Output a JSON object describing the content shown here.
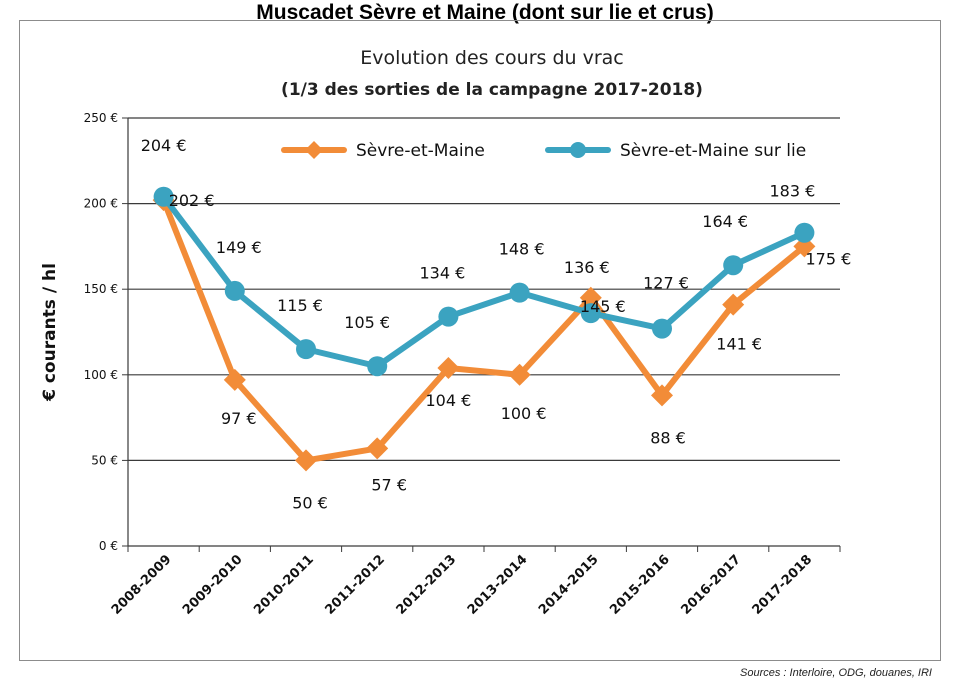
{
  "page_title": "Muscadet Sèvre et Maine (dont sur lie et crus)",
  "source_note": "Sources : Interloire, ODG, douanes, IRI",
  "chart_data": {
    "type": "line",
    "title": "Evolution des cours du vrac",
    "subtitle": "(1/3 des sorties de la campagne 2017-2018)",
    "ylabel": "€ courants / hl",
    "xlabel": "",
    "ylim": [
      0,
      250
    ],
    "y_ticks": [
      "0 €",
      "50 €",
      "100 €",
      "150 €",
      "200 €",
      "250 €"
    ],
    "grid": true,
    "legend_position": "top",
    "categories": [
      "2008-2009",
      "2009-2010",
      "2010-2011",
      "2011-2012",
      "2012-2013",
      "2013-2014",
      "2014-2015",
      "2015-2016",
      "2016-2017",
      "2017-2018"
    ],
    "series": [
      {
        "name": "Sèvre-et-Maine",
        "color": "#f28c38",
        "marker": "diamond",
        "values": [
          202,
          97,
          50,
          57,
          104,
          100,
          145,
          88,
          141,
          175
        ],
        "labels": [
          "202 €",
          "97 €",
          "50 €",
          "57 €",
          "104 €",
          "100 €",
          "145 €",
          "88 €",
          "141 €",
          "175 €"
        ]
      },
      {
        "name": "Sèvre-et-Maine sur lie",
        "color": "#3ba3c0",
        "marker": "circle",
        "values": [
          204,
          149,
          115,
          105,
          134,
          148,
          136,
          127,
          164,
          183
        ],
        "labels": [
          "204 €",
          "149 €",
          "115 €",
          "105 €",
          "134 €",
          "148 €",
          "136 €",
          "127 €",
          "164 €",
          "183 €"
        ]
      }
    ]
  }
}
